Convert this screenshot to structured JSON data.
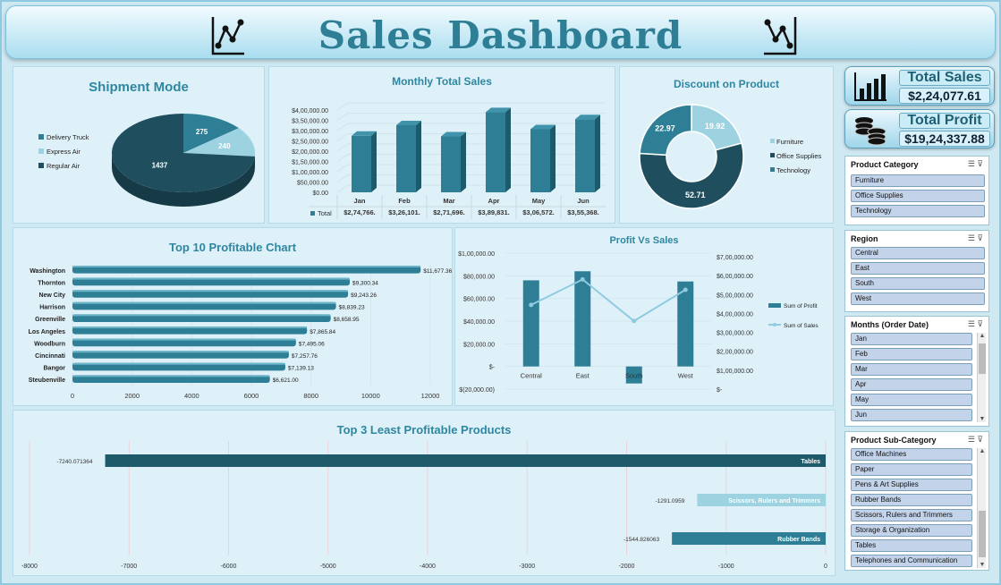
{
  "header": {
    "title": "Sales Dashboard"
  },
  "kpis": {
    "total_sales_label": "Total Sales",
    "total_sales_value": "$2,24,077.61",
    "total_profit_label": "Total Profit",
    "total_profit_value": "$19,24,337.88"
  },
  "panels": {
    "shipment_title": "Shipment Mode",
    "monthly_title": "Monthly Total Sales",
    "discount_title": "Discount on Product",
    "top10_title": "Top 10 Profitable Chart",
    "pvs_title": "Profit Vs Sales",
    "least_title": "Top 3 Least Profitable Products"
  },
  "slicers": {
    "category": {
      "title": "Product Category",
      "items": [
        "Furniture",
        "Office Supplies",
        "Technology"
      ]
    },
    "region": {
      "title": "Region",
      "items": [
        "Central",
        "East",
        "South",
        "West"
      ]
    },
    "months": {
      "title": "Months (Order Date)",
      "items": [
        "Jan",
        "Feb",
        "Mar",
        "Apr",
        "May",
        "Jun"
      ]
    },
    "subcat": {
      "title": "Product Sub-Category",
      "items": [
        "Office Machines",
        "Paper",
        "Pens & Art Supplies",
        "Rubber Bands",
        "Scissors, Rulers and Trimmers",
        "Storage & Organization",
        "Tables",
        "Telephones and Communication"
      ]
    }
  },
  "chart_data": [
    {
      "id": "shipment",
      "type": "pie",
      "labels": [
        "Delivery Truck",
        "Express Air",
        "Regular Air"
      ],
      "values": [
        275,
        240,
        1437
      ],
      "colors": [
        "#2e7f96",
        "#9dd2e1",
        "#1f4f5f"
      ]
    },
    {
      "id": "monthly",
      "type": "bar",
      "categories": [
        "Jan",
        "Feb",
        "Mar",
        "Apr",
        "May",
        "Jun"
      ],
      "values": [
        274766,
        326101,
        271696,
        389831,
        306572,
        355368
      ],
      "y_ticks": [
        "$4,00,000.00",
        "$3,50,000.00",
        "$3,00,000.00",
        "$2,50,000.00",
        "$2,00,000.00",
        "$1,50,000.00",
        "$1,00,000.00",
        "$50,000.00",
        "$0.00"
      ],
      "table_label": "Total",
      "table_values": [
        "$2,74,766.",
        "$3,26,101.",
        "$2,71,696.",
        "$3,89,831.",
        "$3,06,572.",
        "$3,55,368."
      ],
      "ylim": [
        0,
        400000
      ]
    },
    {
      "id": "discount",
      "type": "pie",
      "labels": [
        "Furniture",
        "Office Supplies",
        "Technology"
      ],
      "values": [
        19.92,
        52.71,
        22.97
      ],
      "colors": [
        "#9dd2e1",
        "#1f4f5f",
        "#2e7f96"
      ]
    },
    {
      "id": "top10",
      "type": "bar",
      "categories": [
        "Washington",
        "Thornton",
        "New City",
        "Harrison",
        "Greenville",
        "Los Angeles",
        "Woodburn",
        "Cincinnati",
        "Bangor",
        "Steubenville"
      ],
      "values": [
        11677.36,
        9300.34,
        9243.26,
        8839.23,
        8658.95,
        7865.84,
        7495.06,
        7257.76,
        7139.13,
        6621.0
      ],
      "value_labels": [
        "$11,677.36",
        "$9,300.34",
        "$9,243.26",
        "$8,839.23",
        "$8,658.95",
        "$7,865.84",
        "$7,495.06",
        "$7,257.76",
        "$7,139.13",
        "$6,621.00"
      ],
      "x_ticks": [
        "0",
        "2000",
        "4000",
        "6000",
        "8000",
        "10000",
        "12000"
      ],
      "xlim": [
        0,
        12000
      ]
    },
    {
      "id": "pvs",
      "type": "bar",
      "categories": [
        "Central",
        "East",
        "South",
        "West"
      ],
      "series": [
        {
          "name": "Sum of Profit",
          "values": [
            76000,
            84000,
            -15000,
            75000
          ]
        },
        {
          "name": "Sum of Sales",
          "values": [
            4450000,
            5800000,
            3600000,
            5250000
          ]
        }
      ],
      "y_ticks": [
        "$1,00,000.00",
        "$80,000.00",
        "$60,000.00",
        "$40,000.00",
        "$20,000.00",
        "$-",
        "$(20,000.00)"
      ],
      "y2_ticks": [
        "$7,00,000.00",
        "$6,00,000.00",
        "$5,00,000.00",
        "$4,00,000.00",
        "$3,00,000.00",
        "$2,00,000.00",
        "$1,00,000.00",
        "$-"
      ],
      "ylim": [
        -20000,
        100000
      ],
      "y2lim": [
        0,
        7000000
      ]
    },
    {
      "id": "least",
      "type": "bar",
      "categories": [
        "Tables",
        "Scissors, Rulers and Trimmers",
        "Rubber Bands"
      ],
      "values": [
        -7240.071364,
        -1291.0959,
        -1544.826063
      ],
      "value_labels": [
        "-7240.071364",
        "-1291.0959",
        "-1544.826063"
      ],
      "x_ticks": [
        "-8000",
        "-7000",
        "-6000",
        "-5000",
        "-4000",
        "-3000",
        "-2000",
        "-1000",
        "0"
      ],
      "xlim": [
        -8000,
        0
      ]
    }
  ]
}
